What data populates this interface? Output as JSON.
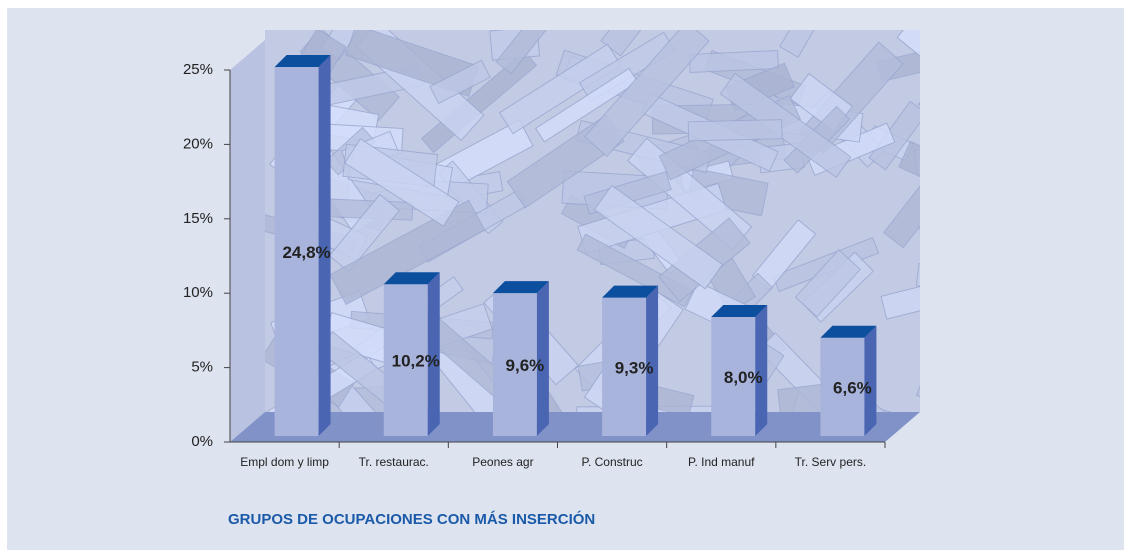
{
  "chart_data": {
    "type": "bar3d",
    "title": "GRUPOS DE OCUPACIONES CON MÁS INSERCIÓN",
    "categories": [
      "Empl dom y limp",
      "Tr. restaurac.",
      "Peones agr",
      "P. Construc",
      "P. Ind manuf",
      "Tr. Serv pers."
    ],
    "values": [
      24.8,
      10.2,
      9.6,
      9.3,
      8.0,
      6.6
    ],
    "value_labels": [
      "24,8%",
      "10,2%",
      "9,6%",
      "9,3%",
      "8,0%",
      "6,6%"
    ],
    "color": "#a9b4dc",
    "ylim": [
      0,
      25
    ],
    "yticks": [
      {
        "value": 0,
        "label": "0%"
      },
      {
        "value": 5,
        "label": "5%"
      },
      {
        "value": 10,
        "label": "10%"
      },
      {
        "value": 15,
        "label": "15%"
      },
      {
        "value": 20,
        "label": "20%"
      },
      {
        "value": 25,
        "label": "25%"
      }
    ]
  }
}
